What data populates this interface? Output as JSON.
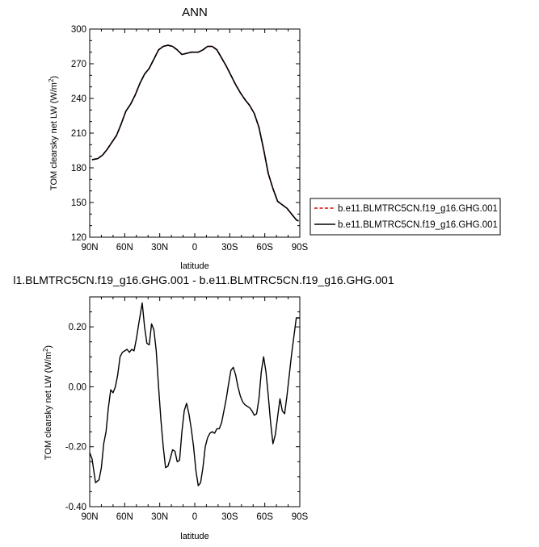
{
  "chart_data": [
    {
      "type": "line",
      "title": "ANN",
      "xlabel": "latitude",
      "ylabel": "TOM clearsky net LW (W/m²)",
      "ylabel_main": "TOM clearsky net LW (W/m",
      "ylabel_sup": "2",
      "ylabel_end": ")",
      "xlim": [
        90,
        -90
      ],
      "ylim": [
        120,
        300
      ],
      "xticks": [
        90,
        60,
        30,
        0,
        -30,
        -60,
        -90
      ],
      "xtick_labels": [
        "90N",
        "60N",
        "30N",
        "0",
        "30S",
        "60S",
        "90S"
      ],
      "yticks": [
        120,
        150,
        180,
        210,
        240,
        270,
        300
      ],
      "ytick_labels": [
        "120",
        "150",
        "180",
        "210",
        "240",
        "270",
        "300"
      ],
      "legend_position": "right",
      "series": [
        {
          "name": "b.e11.BLMTRC5CN.f19_g16.GHG.001",
          "color": "#e00000",
          "dash": "dashed",
          "x": [
            88,
            83,
            79,
            75,
            71,
            67,
            63,
            59,
            55,
            51,
            47,
            43,
            39,
            35,
            31,
            27,
            23,
            19,
            15,
            11,
            7,
            3,
            0,
            -3,
            -7,
            -11,
            -15,
            -19,
            -23,
            -27,
            -31,
            -35,
            -39,
            -43,
            -47,
            -51,
            -55,
            -59,
            -63,
            -67,
            -71,
            -75,
            -79,
            -83,
            -87,
            -89
          ],
          "y": [
            187,
            188,
            191,
            196,
            202,
            208,
            218,
            229,
            235,
            243,
            253,
            261,
            266,
            274,
            282,
            285,
            286,
            285,
            282,
            278,
            279,
            280,
            280,
            280,
            282,
            285,
            285,
            282,
            275,
            268,
            260,
            252,
            245,
            239,
            234,
            227,
            215,
            196,
            175,
            162,
            151,
            148,
            145,
            140,
            135,
            134
          ]
        },
        {
          "name": "b.e11.BLMTRC5CN.f19_g16.GHG.001",
          "color": "#000000",
          "dash": "solid",
          "x": [
            88,
            83,
            79,
            75,
            71,
            67,
            63,
            59,
            55,
            51,
            47,
            43,
            39,
            35,
            31,
            27,
            23,
            19,
            15,
            11,
            7,
            3,
            0,
            -3,
            -7,
            -11,
            -15,
            -19,
            -23,
            -27,
            -31,
            -35,
            -39,
            -43,
            -47,
            -51,
            -55,
            -59,
            -63,
            -67,
            -71,
            -75,
            -79,
            -83,
            -87,
            -89
          ],
          "y": [
            187,
            188,
            191,
            196,
            202,
            208,
            218,
            229,
            235,
            243,
            253,
            261,
            266,
            274,
            282,
            285,
            286,
            285,
            282,
            278,
            279,
            280,
            280,
            280,
            282,
            285,
            285,
            282,
            275,
            268,
            260,
            252,
            245,
            239,
            234,
            227,
            215,
            196,
            175,
            162,
            151,
            148,
            145,
            140,
            135,
            134
          ]
        }
      ]
    },
    {
      "type": "line",
      "title": "l1.BLMTRC5CN.f19_g16.GHG.001 - b.e11.BLMTRC5CN.f19_g16.GHG.001",
      "xlabel": "latitude",
      "ylabel": "TOM clearsky net LW (W/m²)",
      "ylabel_main": "TOM clearsky net LW (W/m",
      "ylabel_sup": "2",
      "ylabel_end": ")",
      "xlim": [
        90,
        -90
      ],
      "ylim": [
        -0.4,
        0.3
      ],
      "xticks": [
        90,
        60,
        30,
        0,
        -30,
        -60,
        -90
      ],
      "xtick_labels": [
        "90N",
        "60N",
        "30N",
        "0",
        "30S",
        "60S",
        "90S"
      ],
      "yticks": [
        -0.4,
        -0.2,
        0.0,
        0.2
      ],
      "ytick_labels": [
        "-0.40",
        "-0.20",
        "0.00",
        "0.20"
      ],
      "series": [
        {
          "color": "#000000",
          "dash": "solid",
          "x": [
            90,
            88,
            85,
            82,
            80,
            78,
            76,
            74,
            72,
            70,
            68,
            66,
            64,
            62,
            60,
            58,
            56,
            54,
            52,
            50,
            48,
            45,
            43,
            41,
            39,
            37,
            35,
            33,
            31,
            29,
            27,
            25,
            23,
            21,
            19,
            17,
            15,
            13,
            11,
            9,
            7,
            5,
            3,
            1,
            -1,
            -3,
            -5,
            -7,
            -9,
            -11,
            -13,
            -15,
            -17,
            -19,
            -21,
            -23,
            -25,
            -27,
            -29,
            -31,
            -33,
            -35,
            -37,
            -39,
            -41,
            -43,
            -45,
            -47,
            -49,
            -51,
            -53,
            -55,
            -57,
            -59,
            -61,
            -63,
            -65,
            -67,
            -69,
            -71,
            -73,
            -75,
            -77,
            -79,
            -81,
            -83,
            -85,
            -87,
            -89,
            -90
          ],
          "y": [
            -0.22,
            -0.24,
            -0.32,
            -0.31,
            -0.27,
            -0.19,
            -0.15,
            -0.07,
            -0.01,
            -0.02,
            0.0,
            0.04,
            0.1,
            0.115,
            0.12,
            0.125,
            0.115,
            0.125,
            0.12,
            0.16,
            0.21,
            0.28,
            0.2,
            0.145,
            0.14,
            0.21,
            0.19,
            0.12,
            0.0,
            -0.11,
            -0.2,
            -0.27,
            -0.265,
            -0.24,
            -0.21,
            -0.215,
            -0.25,
            -0.245,
            -0.15,
            -0.08,
            -0.055,
            -0.09,
            -0.14,
            -0.2,
            -0.28,
            -0.33,
            -0.32,
            -0.27,
            -0.2,
            -0.17,
            -0.155,
            -0.15,
            -0.155,
            -0.14,
            -0.14,
            -0.12,
            -0.08,
            -0.04,
            0.01,
            0.055,
            0.065,
            0.04,
            0.0,
            -0.03,
            -0.05,
            -0.06,
            -0.065,
            -0.07,
            -0.08,
            -0.095,
            -0.09,
            -0.04,
            0.05,
            0.1,
            0.05,
            -0.03,
            -0.12,
            -0.19,
            -0.16,
            -0.1,
            -0.04,
            -0.08,
            -0.09,
            -0.03,
            0.04,
            0.11,
            0.17,
            0.23,
            0.23,
            0.23
          ]
        }
      ]
    }
  ]
}
